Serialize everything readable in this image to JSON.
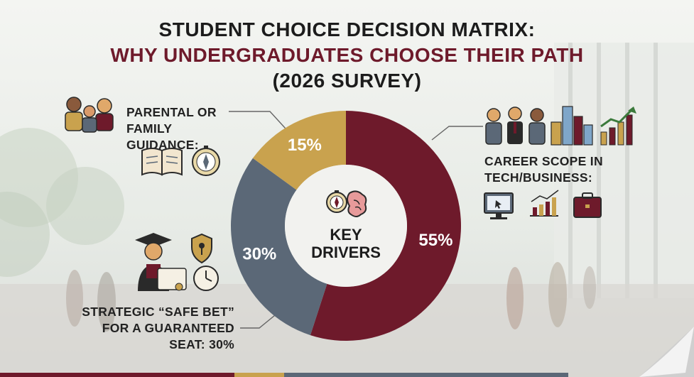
{
  "title": {
    "line1": "STUDENT CHOICE DECISION MATRIX:",
    "line2": "WHY UNDERGRADUATES CHOOSE THEIR PATH",
    "line3": "(2026 SURVEY)"
  },
  "labels": {
    "parental_line1": "PARENTAL OR",
    "parental_line2": "FAMILY GUIDANCE:",
    "career_line1": "CAREER SCOPE IN",
    "career_line2": "TECH/BUSINESS:",
    "safe_line1": "STRATEGIC “SAFE BET”",
    "safe_line2": "FOR A GUARANTEED",
    "safe_line3": "SEAT: 30%"
  },
  "center": {
    "line1": "KEY",
    "line2": "DRIVERS"
  },
  "colors": {
    "career": "#6e1a2b",
    "safe": "#5b6877",
    "parental": "#c9a24e",
    "title_accent": "#6e1a2b"
  },
  "chart_data": {
    "type": "pie",
    "donut": true,
    "slices": [
      {
        "label": "55%",
        "value": 55,
        "color": "#6e1a2b"
      },
      {
        "label": "30%",
        "value": 30,
        "color": "#5b6877"
      },
      {
        "label": "15%",
        "value": 15,
        "color": "#c9a24e"
      }
    ]
  }
}
